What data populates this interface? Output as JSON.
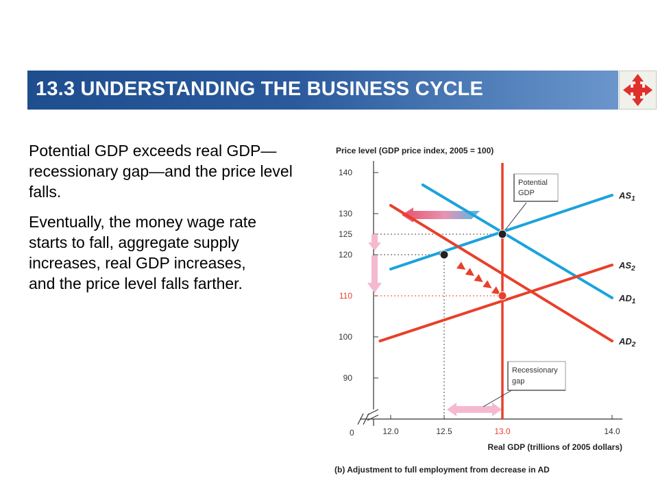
{
  "slide": {
    "title": "13.3  UNDERSTANDING THE BUSINESS CYCLE",
    "nav_icon": "four-way-arrows-icon",
    "bullets": [
      "Potential GDP exceeds real GDP—recessionary gap—and the price level falls.",
      "Eventually, the money wage rate starts to fall, aggregate supply increases, real GDP increases, and the price level falls farther."
    ]
  },
  "chart_data": {
    "type": "line",
    "ylabel": "Price level (GDP price index, 2005 = 100)",
    "xlabel": "Real GDP (trillions of 2005 dollars)",
    "caption": "(b) Adjustment to full employment from decrease in AD",
    "origin_label": "0",
    "x_ticks": [
      "12.0",
      "12.5",
      "13.0",
      "14.0"
    ],
    "y_ticks": [
      "90",
      "100",
      "110",
      "120",
      "125",
      "130",
      "140"
    ],
    "highlight_ticks": {
      "x": "13.0",
      "y": "110"
    },
    "series": [
      {
        "name": "AS1",
        "color": "#1aa3dc",
        "points": [
          [
            12.0,
            116.5
          ],
          [
            14.0,
            134.5
          ]
        ]
      },
      {
        "name": "AD1",
        "color": "#1aa3dc",
        "points": [
          [
            12.3,
            137.0
          ],
          [
            14.0,
            109.5
          ]
        ]
      },
      {
        "name": "AS2",
        "color": "#e8402a",
        "points": [
          [
            11.9,
            99.0
          ],
          [
            14.0,
            117.5
          ]
        ]
      },
      {
        "name": "AD2",
        "color": "#e8402a",
        "points": [
          [
            12.0,
            132.0
          ],
          [
            14.0,
            99.0
          ]
        ]
      },
      {
        "name": "Potential GDP",
        "color": "#e8402a",
        "vertical_x": 13.0
      }
    ],
    "equilibria": [
      {
        "x": 13.0,
        "y": 125,
        "color": "#222222"
      },
      {
        "x": 12.5,
        "y": 120,
        "color": "#222222"
      },
      {
        "x": 13.0,
        "y": 110,
        "color": "#e8402a"
      }
    ],
    "annotations": [
      {
        "text_lines": [
          "Potential",
          "GDP"
        ]
      },
      {
        "text_lines": [
          "Recessionary",
          "gap"
        ]
      }
    ],
    "colors": {
      "blue": "#1aa3dc",
      "red": "#e8402a",
      "pink": "#f4b9d0"
    }
  }
}
